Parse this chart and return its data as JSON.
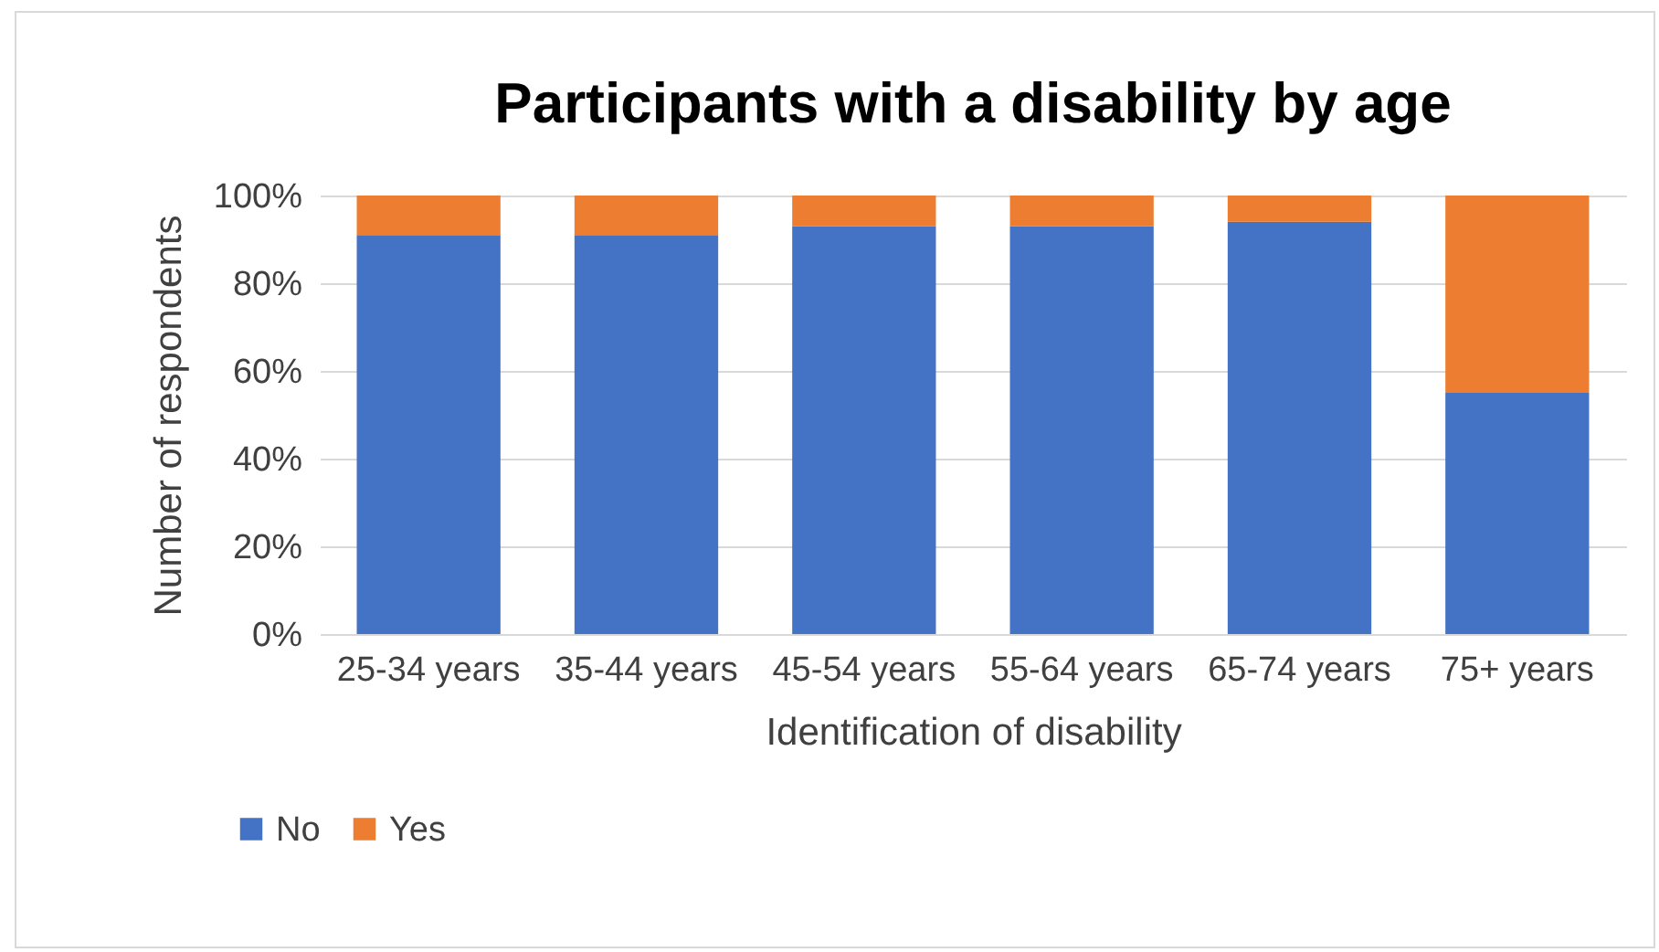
{
  "chart_data": {
    "type": "bar",
    "title": "Participants with a disability by age",
    "xlabel": "Identification of disability",
    "ylabel": "Number of respondents",
    "categories": [
      "25-34 years",
      "35-44 years",
      "45-54 years",
      "55-64 years",
      "65-74 years",
      "75+ years"
    ],
    "stacked": true,
    "series": [
      {
        "name": "No",
        "color": "#4472c4",
        "values": [
          91,
          91,
          93,
          93,
          94,
          55
        ]
      },
      {
        "name": "Yes",
        "color": "#ed7d31",
        "values": [
          9,
          9,
          7,
          7,
          6,
          45
        ]
      }
    ],
    "ylim": [
      0,
      100
    ],
    "yticks": [
      {
        "value": 0,
        "label": "0%"
      },
      {
        "value": 20,
        "label": "20%"
      },
      {
        "value": 40,
        "label": "40%"
      },
      {
        "value": 60,
        "label": "60%"
      },
      {
        "value": 80,
        "label": "80%"
      },
      {
        "value": 100,
        "label": "100%"
      }
    ],
    "grid": "y",
    "legend": "bottom left"
  }
}
